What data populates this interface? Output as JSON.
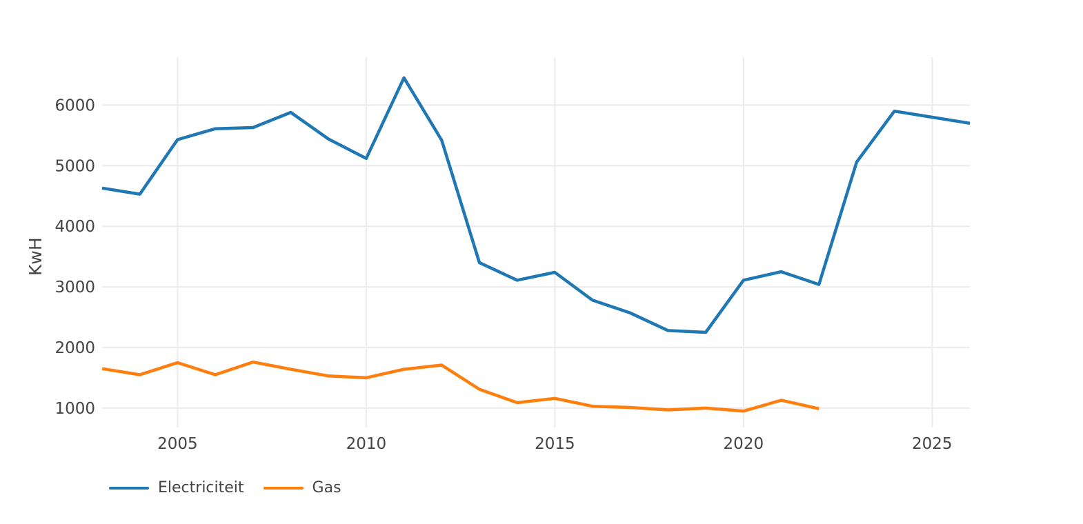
{
  "chart_data": {
    "type": "line",
    "title": "",
    "xlabel": "",
    "ylabel": "KwH",
    "grid": true,
    "legend_position": "bottom-left",
    "background_color": "#ffffff",
    "gridline_color": "#ebebeb",
    "tick_color": "#444444",
    "xlim": [
      2003,
      2026
    ],
    "ylim": [
      680,
      6790
    ],
    "xticks": [
      2005,
      2010,
      2015,
      2020,
      2025
    ],
    "yticks": [
      1000,
      2000,
      3000,
      4000,
      5000,
      6000
    ],
    "series": [
      {
        "name": "Electriciteit",
        "color": "#1f77b4",
        "x": [
          2003,
          2004,
          2005,
          2006,
          2007,
          2008,
          2009,
          2010,
          2011,
          2012,
          2013,
          2014,
          2015,
          2016,
          2017,
          2018,
          2019,
          2020,
          2021,
          2022,
          2023,
          2024,
          2025,
          2026
        ],
        "values": [
          4630,
          4530,
          5430,
          5610,
          5630,
          5880,
          5440,
          5120,
          6450,
          5420,
          3400,
          3110,
          3240,
          2780,
          2570,
          2280,
          2250,
          3110,
          3250,
          3040,
          5060,
          5900,
          5800,
          5700
        ]
      },
      {
        "name": "Gas",
        "color": "#ff7f0e",
        "x": [
          2003,
          2004,
          2005,
          2006,
          2007,
          2008,
          2009,
          2010,
          2011,
          2012,
          2013,
          2014,
          2015,
          2016,
          2017,
          2018,
          2019,
          2020,
          2021,
          2022
        ],
        "values": [
          1650,
          1550,
          1750,
          1550,
          1760,
          1640,
          1530,
          1500,
          1640,
          1710,
          1310,
          1090,
          1160,
          1030,
          1010,
          970,
          1000,
          950,
          1130,
          990
        ]
      }
    ]
  },
  "legend": {
    "items": [
      {
        "label": "Electriciteit"
      },
      {
        "label": "Gas"
      }
    ]
  }
}
